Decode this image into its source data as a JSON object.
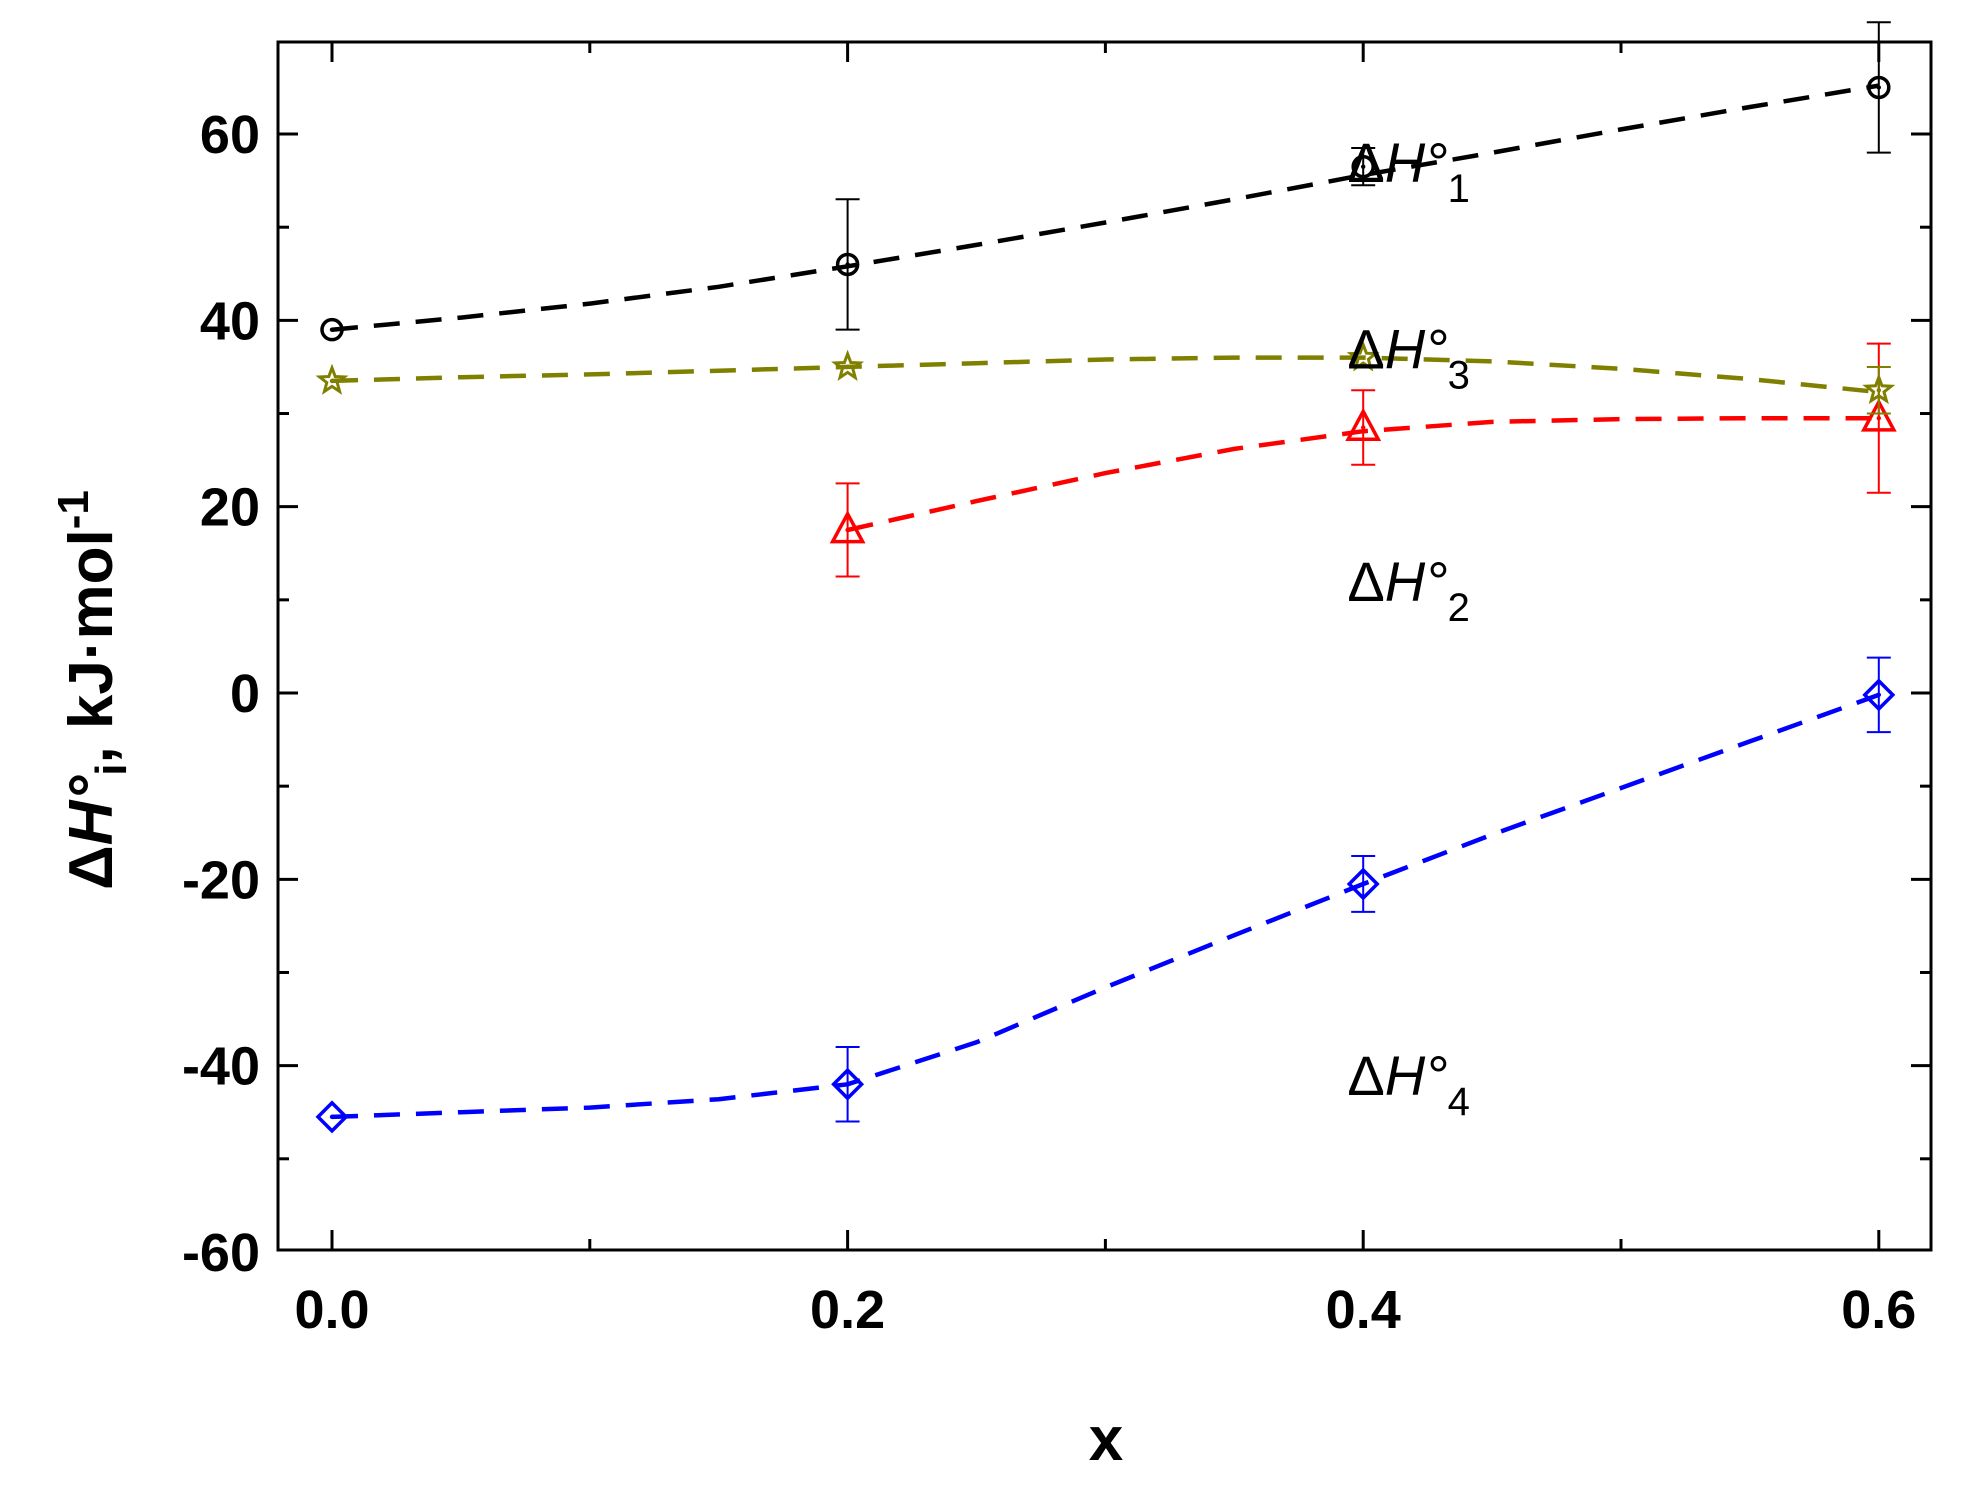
{
  "chart_data": {
    "type": "line",
    "title": "",
    "xlabel": "x",
    "ylabel": {
      "delta": "Δ",
      "symbol": "H°",
      "subscript": "i",
      "unit": ", kJ·mol",
      "unit_exponent": "-1"
    },
    "xlim": [
      -0.05,
      0.62
    ],
    "ylim": [
      -60,
      70
    ],
    "x_ticks": [
      0.0,
      0.2,
      0.4,
      0.6
    ],
    "x_tick_labels": [
      "0.0",
      "0.2",
      "0.4",
      "0.6"
    ],
    "y_ticks": [
      -60,
      -40,
      -20,
      0,
      20,
      40,
      60
    ],
    "y_tick_labels": [
      "-60",
      "-40",
      "-20",
      "0",
      "20",
      "40",
      "60"
    ],
    "x_minor_step": 0.1,
    "y_minor_step": 10,
    "grid": false,
    "series": [
      {
        "name": "ΔH°1",
        "label_main": "ΔH°",
        "label_sub": "1",
        "label_anchor": [
          0.3,
          57
        ],
        "color": "#000000",
        "marker": "circle-dot",
        "x": [
          0.0,
          0.2,
          0.4,
          0.6
        ],
        "y": [
          39,
          46,
          56.5,
          65
        ],
        "yerr": [
          null,
          7,
          2,
          7
        ],
        "curve": [
          [
            0.0,
            39.0
          ],
          [
            0.05,
            40.3
          ],
          [
            0.1,
            41.8
          ],
          [
            0.15,
            43.6
          ],
          [
            0.2,
            45.8
          ],
          [
            0.25,
            48.1
          ],
          [
            0.3,
            50.5
          ],
          [
            0.35,
            53.0
          ],
          [
            0.4,
            55.6
          ],
          [
            0.45,
            58.0
          ],
          [
            0.5,
            60.5
          ],
          [
            0.55,
            62.9
          ],
          [
            0.6,
            65.2
          ]
        ]
      },
      {
        "name": "ΔH°2",
        "label_main": "ΔH°",
        "label_sub": "2",
        "label_anchor": [
          0.3,
          12
        ],
        "color": "#ff0000",
        "marker": "triangle-dot",
        "x": [
          0.2,
          0.4,
          0.6
        ],
        "y": [
          17.5,
          28.5,
          29.5
        ],
        "yerr": [
          5,
          4,
          8
        ],
        "curve": [
          [
            0.2,
            17.5
          ],
          [
            0.25,
            20.6
          ],
          [
            0.3,
            23.6
          ],
          [
            0.35,
            26.2
          ],
          [
            0.4,
            28.1
          ],
          [
            0.45,
            29.1
          ],
          [
            0.5,
            29.4
          ],
          [
            0.55,
            29.5
          ],
          [
            0.6,
            29.5
          ]
        ]
      },
      {
        "name": "ΔH°3",
        "label_main": "ΔH°",
        "label_sub": "3",
        "label_anchor": [
          0.3,
          37
        ],
        "color": "#808000",
        "marker": "star-dot",
        "x": [
          0.0,
          0.2,
          0.4,
          0.6
        ],
        "y": [
          33.5,
          35,
          36,
          32.5
        ],
        "yerr": [
          null,
          null,
          null,
          2.5
        ],
        "curve": [
          [
            0.0,
            33.5
          ],
          [
            0.05,
            33.9
          ],
          [
            0.1,
            34.2
          ],
          [
            0.15,
            34.6
          ],
          [
            0.2,
            35.0
          ],
          [
            0.25,
            35.4
          ],
          [
            0.3,
            35.8
          ],
          [
            0.35,
            36.0
          ],
          [
            0.4,
            36.0
          ],
          [
            0.45,
            35.6
          ],
          [
            0.5,
            34.8
          ],
          [
            0.55,
            33.7
          ],
          [
            0.6,
            32.3
          ]
        ]
      },
      {
        "name": "ΔH°4",
        "label_main": "ΔH°",
        "label_sub": "4",
        "label_anchor": [
          0.3,
          -41
        ],
        "color": "#0000ff",
        "marker": "diamond-dot",
        "x": [
          0.0,
          0.2,
          0.4,
          0.6
        ],
        "y": [
          -45.5,
          -42,
          -20.5,
          -0.2
        ],
        "yerr": [
          null,
          4,
          3,
          4
        ],
        "curve": [
          [
            0.0,
            -45.5
          ],
          [
            0.05,
            -45.0
          ],
          [
            0.1,
            -44.5
          ],
          [
            0.15,
            -43.6
          ],
          [
            0.2,
            -42.0
          ],
          [
            0.25,
            -37.5
          ],
          [
            0.3,
            -31.6
          ],
          [
            0.35,
            -26.0
          ],
          [
            0.4,
            -20.5
          ],
          [
            0.45,
            -15.2
          ],
          [
            0.5,
            -10.2
          ],
          [
            0.55,
            -5.2
          ],
          [
            0.6,
            -0.2
          ]
        ]
      }
    ]
  }
}
